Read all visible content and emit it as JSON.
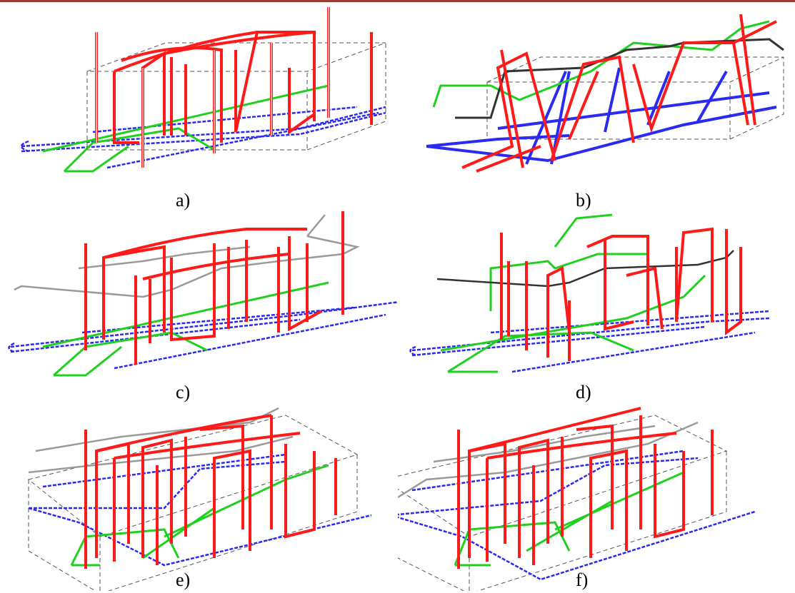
{
  "panels": [
    {
      "label": "a)"
    },
    {
      "label": "b)"
    },
    {
      "label": "c)"
    },
    {
      "label": "d)"
    },
    {
      "label": "e)"
    },
    {
      "label": "f)"
    }
  ],
  "colors": {
    "header_bar": "#9b3a35",
    "stirrup": "#ff1a1a",
    "bottom_bar": "#2a2af0",
    "diagonal_bar": "#1fd01f",
    "top_bar": "#9a9a9a",
    "dark_bar": "#333333",
    "box_outline": "#555555"
  }
}
